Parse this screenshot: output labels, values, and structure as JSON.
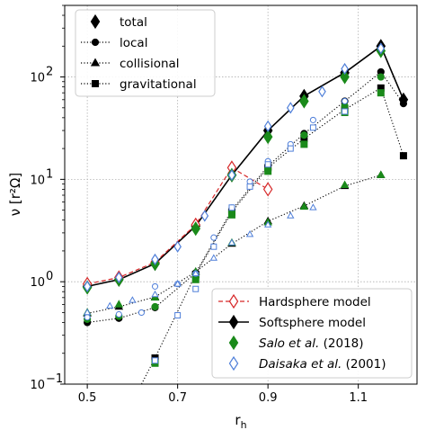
{
  "chart_data": {
    "type": "line",
    "xlabel": "r",
    "xlabel_sub": "h",
    "ylabel": "ν [r²Ω]",
    "xlim": [
      0.45,
      1.23
    ],
    "ylim": [
      0.1,
      500
    ],
    "yscale": "log",
    "grid": true,
    "xticks": [
      0.5,
      0.7,
      0.9,
      1.1
    ],
    "xtick_labels": [
      "0.5",
      "0.7",
      "0.9",
      "1.1"
    ],
    "yticks": [
      0.1,
      1,
      10,
      100
    ],
    "ytick_labels": [
      "10",
      "10",
      "10",
      "10"
    ],
    "ytick_exponents": [
      "−1",
      "0",
      "1",
      "2"
    ],
    "legend_top_left": [
      {
        "label": "total",
        "marker": "diamond"
      },
      {
        "label": "local",
        "marker": "circle"
      },
      {
        "label": "collisional",
        "marker": "triangle"
      },
      {
        "label": "gravitational",
        "marker": "square"
      }
    ],
    "legend_bottom_right": [
      {
        "label": "Hardsphere model",
        "style": "dashed",
        "color": "#d62728",
        "marker": "open-diamond"
      },
      {
        "label": "Softsphere model",
        "style": "solid",
        "color": "#000000",
        "marker": "diamond"
      },
      {
        "label_italic": "Salo et al.",
        "label_rest": " (2018)",
        "color": "#1a8a1a",
        "marker": "diamond"
      },
      {
        "label_italic": "Daisaka et al.",
        "label_rest": " (2001)",
        "color": "#4f7fd9",
        "marker": "open-diamond"
      }
    ],
    "series": [
      {
        "name": "Softsphere model",
        "kind": "total",
        "color": "#000000",
        "x": [
          0.5,
          0.57,
          0.65,
          0.74,
          0.82,
          0.9,
          0.98,
          1.07,
          1.15,
          1.2
        ],
        "y": [
          0.9,
          1.05,
          1.5,
          3.5,
          11,
          30,
          65,
          110,
          200,
          60
        ]
      },
      {
        "name": "Softsphere model",
        "kind": "local",
        "color": "#000000",
        "x": [
          0.5,
          0.57,
          0.65,
          0.74,
          0.82,
          0.9,
          0.98,
          1.07,
          1.15,
          1.2
        ],
        "y": [
          0.4,
          0.44,
          0.56,
          1.22,
          5.0,
          13.5,
          28,
          58,
          112,
          55
        ]
      },
      {
        "name": "Softsphere model",
        "kind": "collisional",
        "color": "#000000",
        "x": [
          0.5,
          0.57,
          0.65,
          0.74,
          0.82,
          0.9,
          0.98,
          1.07,
          1.15
        ],
        "y": [
          0.49,
          0.57,
          0.71,
          1.25,
          2.35,
          3.9,
          5.5,
          8.6,
          11
        ]
      },
      {
        "name": "Softsphere model",
        "kind": "gravitational",
        "color": "#000000",
        "x": [
          0.65,
          0.74,
          0.82,
          0.9,
          0.98,
          1.07,
          1.15,
          1.2
        ],
        "y": [
          0.18,
          1.18,
          4.8,
          13,
          25,
          48,
          78,
          17
        ]
      },
      {
        "name": "Hardsphere model",
        "kind": "total",
        "color": "#d62728",
        "x": [
          0.5,
          0.57,
          0.65,
          0.74,
          0.82,
          0.9
        ],
        "y": [
          0.95,
          1.1,
          1.55,
          3.6,
          13,
          8
        ]
      },
      {
        "name": "Salo et al. (2018)",
        "kind": "total",
        "color": "#1a8a1a",
        "x": [
          0.5,
          0.57,
          0.65,
          0.74,
          0.82,
          0.9,
          0.98,
          1.07,
          1.15
        ],
        "y": [
          0.88,
          1.05,
          1.5,
          3.3,
          11,
          26,
          58,
          100,
          180
        ]
      },
      {
        "name": "Salo et al. (2018)",
        "kind": "local",
        "color": "#1a8a1a",
        "x": [
          0.5,
          0.57,
          0.65,
          0.74,
          0.82,
          0.9,
          0.98,
          1.07,
          1.15
        ],
        "y": [
          0.43,
          0.46,
          0.57,
          1.1,
          4.8,
          12.5,
          27,
          52,
          100
        ]
      },
      {
        "name": "Salo et al. (2018)",
        "kind": "collisional",
        "color": "#1a8a1a",
        "x": [
          0.5,
          0.57,
          0.65,
          0.74,
          0.82,
          0.9,
          0.98,
          1.07,
          1.15
        ],
        "y": [
          0.5,
          0.6,
          0.7,
          1.25,
          2.4,
          3.8,
          5.4,
          8.8,
          11
        ]
      },
      {
        "name": "Salo et al. (2018)",
        "kind": "gravitational",
        "color": "#1a8a1a",
        "x": [
          0.65,
          0.74,
          0.82,
          0.9,
          0.98,
          1.07,
          1.15
        ],
        "y": [
          0.16,
          1.05,
          4.5,
          12,
          22,
          45,
          70
        ]
      },
      {
        "name": "Daisaka et al. (2001)",
        "kind": "total",
        "color": "#4f7fd9",
        "x": [
          0.5,
          0.57,
          0.65,
          0.7,
          0.76,
          0.82,
          0.9,
          0.95,
          1.02,
          1.07,
          1.15
        ],
        "y": [
          0.9,
          1.1,
          1.65,
          2.2,
          4.4,
          11,
          33,
          50,
          72,
          120,
          190
        ]
      },
      {
        "name": "Daisaka et al. (2001)",
        "kind": "local",
        "color": "#4f7fd9",
        "x": [
          0.5,
          0.57,
          0.62,
          0.65,
          0.7,
          0.74,
          0.78,
          0.82,
          0.86,
          0.9,
          0.95,
          1.0,
          1.07
        ],
        "y": [
          0.45,
          0.48,
          0.5,
          0.9,
          0.95,
          1.2,
          2.7,
          5.3,
          9.5,
          15,
          22,
          38,
          58
        ]
      },
      {
        "name": "Daisaka et al. (2001)",
        "kind": "collisional",
        "color": "#4f7fd9",
        "x": [
          0.5,
          0.55,
          0.6,
          0.65,
          0.7,
          0.74,
          0.78,
          0.82,
          0.86,
          0.9,
          0.95,
          1.0
        ],
        "y": [
          0.5,
          0.58,
          0.66,
          0.75,
          0.95,
          1.2,
          1.7,
          2.4,
          2.9,
          3.6,
          4.4,
          5.3
        ]
      },
      {
        "name": "Daisaka et al. (2001)",
        "kind": "gravitational",
        "color": "#4f7fd9",
        "x": [
          0.65,
          0.7,
          0.74,
          0.78,
          0.82,
          0.86,
          0.9,
          0.95,
          1.0,
          1.07
        ],
        "y": [
          0.17,
          0.47,
          0.85,
          2.2,
          5.3,
          8.5,
          14,
          20,
          32,
          46
        ]
      }
    ]
  }
}
